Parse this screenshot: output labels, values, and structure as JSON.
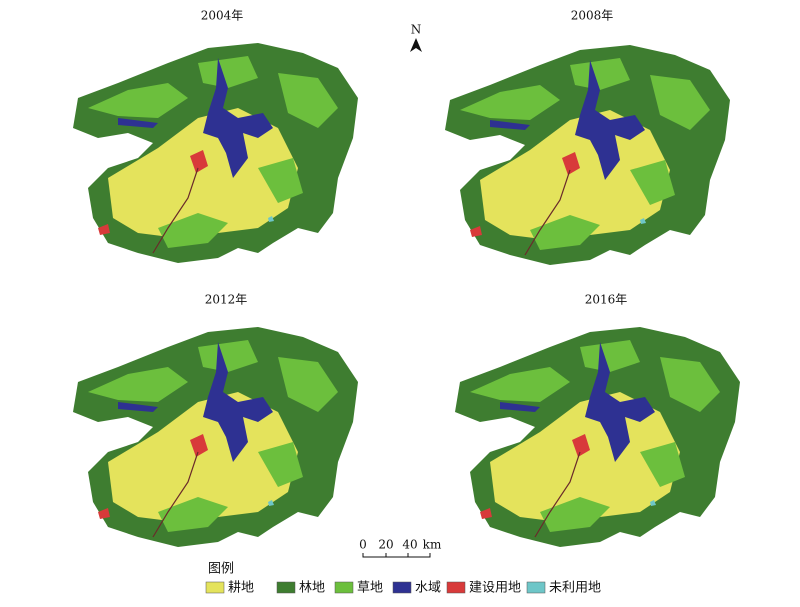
{
  "panels": [
    {
      "title": "2004年"
    },
    {
      "title": "2008年"
    },
    {
      "title": "2012年"
    },
    {
      "title": "2016年"
    }
  ],
  "north": "N",
  "scale": {
    "ticks": [
      "0",
      "20",
      "40"
    ],
    "unit": "km"
  },
  "legend": {
    "title": "图例",
    "items": [
      {
        "label": "耕地",
        "color": "#e4e35c"
      },
      {
        "label": "林地",
        "color": "#3e7d30"
      },
      {
        "label": "草地",
        "color": "#6cbf3d"
      },
      {
        "label": "水域",
        "color": "#2e3192"
      },
      {
        "label": "建设用地",
        "color": "#d83a3a"
      },
      {
        "label": "未利用地",
        "color": "#6ec6c8"
      }
    ]
  }
}
